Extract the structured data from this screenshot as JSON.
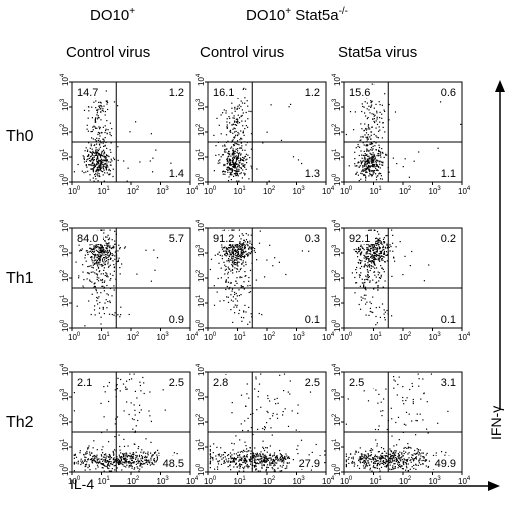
{
  "headers": {
    "group1": "DO10",
    "group1_sup": "+",
    "group2": "DO10",
    "group2_sup": "+",
    "group2_gene": " Stat5a",
    "group2_gene_sup": "-/-",
    "col1": "Control virus",
    "col2": "Control virus",
    "col3": "Stat5a virus"
  },
  "rows": [
    "Th0",
    "Th1",
    "Th2"
  ],
  "axis": {
    "x_label": "IL-4",
    "y_label": "IFN-γ",
    "tick_exps": [
      "0",
      "1",
      "2",
      "3",
      "4"
    ],
    "tick_base": "10"
  },
  "chart_data": {
    "type": "scatter",
    "subtype": "flow cytometry quadrant dot plots",
    "xlabel": "IL-4",
    "ylabel": "IFN-γ",
    "xscale": "log",
    "yscale": "log",
    "xlim": [
      1,
      10000
    ],
    "ylim": [
      1,
      10000
    ],
    "panels": [
      {
        "row": "Th0",
        "col": "Control virus",
        "upper_left": "14.7",
        "upper_right": "1.2",
        "lower_right": "1.4",
        "pattern": "th0"
      },
      {
        "row": "Th0",
        "col": "Control virus",
        "upper_left": "16.1",
        "upper_right": "1.2",
        "lower_right": "1.3",
        "pattern": "th0"
      },
      {
        "row": "Th0",
        "col": "Stat5a virus",
        "upper_left": "15.6",
        "upper_right": "0.6",
        "lower_right": "1.1",
        "pattern": "th0"
      },
      {
        "row": "Th1",
        "col": "Control virus",
        "upper_left": "84.0",
        "upper_right": "5.7",
        "lower_right": "0.9",
        "pattern": "th1"
      },
      {
        "row": "Th1",
        "col": "Control virus",
        "upper_left": "91.2",
        "upper_right": "0.3",
        "lower_right": "0.1",
        "pattern": "th1"
      },
      {
        "row": "Th1",
        "col": "Stat5a virus",
        "upper_left": "92.1",
        "upper_right": "0.2",
        "lower_right": "0.1",
        "pattern": "th1"
      },
      {
        "row": "Th2",
        "col": "Control virus",
        "upper_left": "2.1",
        "upper_right": "2.5",
        "lower_right": "48.5",
        "pattern": "th2"
      },
      {
        "row": "Th2",
        "col": "Control virus",
        "upper_left": "2.8",
        "upper_right": "2.5",
        "lower_right": "27.9",
        "pattern": "th2"
      },
      {
        "row": "Th2",
        "col": "Stat5a virus",
        "upper_left": "2.5",
        "upper_right": "3.1",
        "lower_right": "49.9",
        "pattern": "th2"
      }
    ]
  }
}
